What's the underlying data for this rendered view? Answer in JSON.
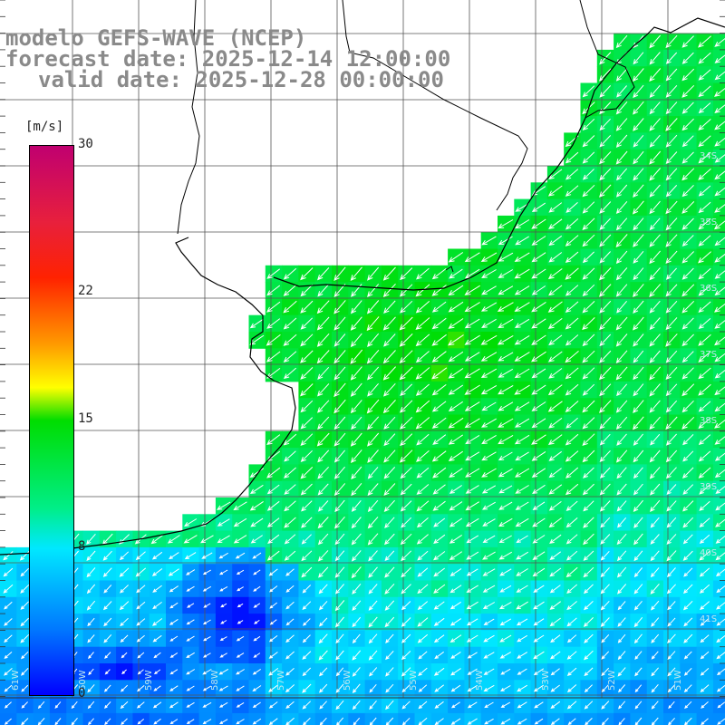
{
  "title": {
    "line1": "modelo GEFS-WAVE (NCEP)",
    "line2": "forecast date: 2025-12-14 12:00:00",
    "line3": "valid date: 2025-12-28 00:00:00"
  },
  "colorbar": {
    "unit": "[m/s]",
    "min": 0,
    "max": 30,
    "ticks": [
      {
        "value": 30,
        "label": "30"
      },
      {
        "value": 22,
        "label": "22"
      },
      {
        "value": 15,
        "label": "15"
      },
      {
        "value": 8,
        "label": "8"
      },
      {
        "value": 0,
        "label": "0"
      }
    ],
    "colors": [
      "#0000ff",
      "#0078ff",
      "#00e8ff",
      "#00ee88",
      "#00dd00",
      "#ffff00",
      "#ff9900",
      "#ff2200",
      "#c00070"
    ]
  },
  "map": {
    "variable": "wind speed and direction",
    "land_color": "#ffffff",
    "grid_color": "#555555",
    "coastline_color": "#000000",
    "arrow_color": "#ffffff",
    "lat_labels": [
      "34S",
      "35S",
      "36S",
      "37S",
      "38S",
      "39S",
      "40S",
      "41S"
    ],
    "lon_labels": [
      "61W",
      "60W",
      "59W",
      "58W",
      "57W",
      "56W",
      "55W",
      "54W",
      "53W",
      "52W",
      "51W"
    ]
  }
}
